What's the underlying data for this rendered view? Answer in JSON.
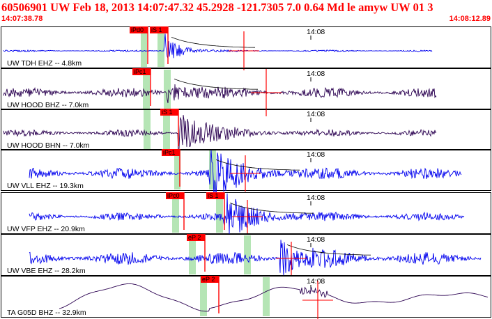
{
  "header": {
    "title": "60506901 UW Feb 18, 2013 14:07:47.32    45.2928 -121.7305  7.0 0.64 Md le amyw UW 01    3",
    "start_time": "14:07:38.78",
    "end_time": "14:08:12.89"
  },
  "colors": {
    "title": "#ff0000",
    "trace_blue": "#0000ee",
    "trace_dark": "#2a0050",
    "pick_marker": "#ff0000",
    "coda_band": "#a8e0a8"
  },
  "tick_label": "14:08",
  "panels": [
    {
      "label": "UW TDH EHZ -- 4.8km",
      "picks": [
        "iPd0",
        "iS 1"
      ]
    },
    {
      "label": "UW HOOD BHZ -- 7.0km",
      "picks": [
        "iPc1"
      ]
    },
    {
      "label": "UW HOOD BHN -- 7.0km",
      "picks": [
        "iS 1"
      ]
    },
    {
      "label": "UW VLL EHZ -- 19.3km",
      "picks": [
        "iPc1"
      ]
    },
    {
      "label": "UW VFP EHZ -- 20.9km",
      "picks": [
        "iPc0",
        "iS 1"
      ]
    },
    {
      "label": "UW VBE EHZ -- 28.2km",
      "picks": [
        "eP 2"
      ]
    },
    {
      "label": "TA G05D BHZ -- 32.9km",
      "picks": [
        "eP 2"
      ]
    }
  ]
}
